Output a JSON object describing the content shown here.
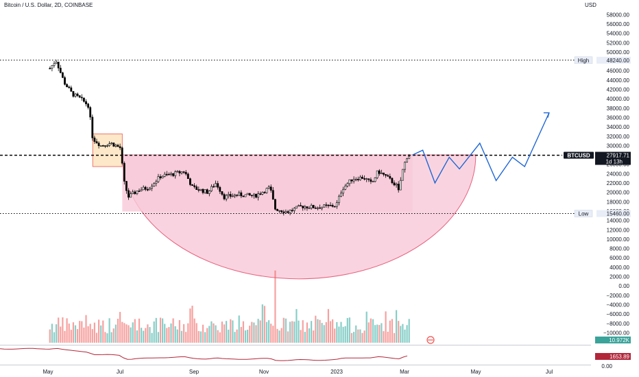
{
  "header": {
    "title": "Bitcoin / U.S. Dollar, 2D, COINBASE"
  },
  "price_axis": {
    "currency": "USD",
    "ticks": [
      "58000.00",
      "56000.00",
      "54000.00",
      "52000.00",
      "50000.00",
      "46000.00",
      "44000.00",
      "42000.00",
      "40000.00",
      "38000.00",
      "36000.00",
      "34000.00",
      "32000.00",
      "30000.00",
      "26000.00",
      "24000.00",
      "22000.00",
      "20000.00",
      "18000.00",
      "16000.00",
      "14000.00",
      "12000.00",
      "10000.00",
      "8000.00",
      "6000.00",
      "4000.00",
      "2000.00",
      "0.00",
      "−2000.00",
      "−4000.00",
      "−6000.00",
      "−8000.00",
      "−10000.00"
    ],
    "high": {
      "label": "High",
      "value": "48240.00"
    },
    "low": {
      "label": "Low",
      "value": "15460.00"
    },
    "current": {
      "symbol": "BTCUSD",
      "value": "27917.71",
      "countdown": "1d 13h"
    },
    "volume_badge": "10.972K",
    "indicator_badge": "1653.89",
    "indicator_zero": "0.00"
  },
  "time_axis": {
    "labels": [
      "May",
      "Jul",
      "Sep",
      "Nov",
      "2023",
      "Mar",
      "May",
      "Jul"
    ]
  },
  "colors": {
    "up": "#26a69a",
    "down": "#ef5350",
    "candle": "#000000",
    "pink_zone": "#f8c9d8",
    "pink_line": "#e8607f",
    "forecast": "#1e66d6",
    "orange_box": "#fde4bf"
  },
  "chart_data": {
    "type": "candlestick",
    "title": "Bitcoin / U.S. Dollar, 2D, COINBASE",
    "y_unit": "USD",
    "ylim": [
      -10000,
      60000
    ],
    "high": 48240,
    "low": 15460,
    "last_price": 27917.71,
    "x_labels": [
      "May",
      "Jul",
      "Sep",
      "Nov",
      "2023",
      "Mar",
      "May",
      "Jul"
    ],
    "price_path": [
      {
        "date": "2022-04-02",
        "close": 46500
      },
      {
        "date": "2022-04-08",
        "close": 48240
      },
      {
        "date": "2022-04-16",
        "close": 43500
      },
      {
        "date": "2022-04-24",
        "close": 41000
      },
      {
        "date": "2022-05-02",
        "close": 40000
      },
      {
        "date": "2022-05-10",
        "close": 38500
      },
      {
        "date": "2022-05-14",
        "close": 31500
      },
      {
        "date": "2022-05-22",
        "close": 30000
      },
      {
        "date": "2022-06-01",
        "close": 30500
      },
      {
        "date": "2022-06-10",
        "close": 29500
      },
      {
        "date": "2022-06-14",
        "close": 22000
      },
      {
        "date": "2022-06-18",
        "close": 19000
      },
      {
        "date": "2022-06-28",
        "close": 20500
      },
      {
        "date": "2022-07-08",
        "close": 21000
      },
      {
        "date": "2022-07-20",
        "close": 23500
      },
      {
        "date": "2022-07-30",
        "close": 23800
      },
      {
        "date": "2022-08-12",
        "close": 24500
      },
      {
        "date": "2022-08-20",
        "close": 21000
      },
      {
        "date": "2022-09-04",
        "close": 20000
      },
      {
        "date": "2022-09-12",
        "close": 22000
      },
      {
        "date": "2022-09-20",
        "close": 19000
      },
      {
        "date": "2022-10-04",
        "close": 19500
      },
      {
        "date": "2022-10-20",
        "close": 19200
      },
      {
        "date": "2022-11-04",
        "close": 21000
      },
      {
        "date": "2022-11-09",
        "close": 16500
      },
      {
        "date": "2022-11-21",
        "close": 15800
      },
      {
        "date": "2022-12-05",
        "close": 17000
      },
      {
        "date": "2022-12-20",
        "close": 16800
      },
      {
        "date": "2023-01-08",
        "close": 17200
      },
      {
        "date": "2023-01-14",
        "close": 20800
      },
      {
        "date": "2023-01-24",
        "close": 22900
      },
      {
        "date": "2023-02-04",
        "close": 23200
      },
      {
        "date": "2023-02-12",
        "close": 21800
      },
      {
        "date": "2023-02-18",
        "close": 24500
      },
      {
        "date": "2023-02-26",
        "close": 23400
      },
      {
        "date": "2023-03-08",
        "close": 21500
      },
      {
        "date": "2023-03-10",
        "close": 20000
      },
      {
        "date": "2023-03-14",
        "close": 24500
      },
      {
        "date": "2023-03-18",
        "close": 27500
      },
      {
        "date": "2023-03-22",
        "close": 28000
      }
    ],
    "forecast_path": [
      {
        "date": "2023-03-24",
        "price": 28000
      },
      {
        "date": "2023-04-03",
        "price": 29000
      },
      {
        "date": "2023-04-15",
        "price": 22000
      },
      {
        "date": "2023-04-29",
        "price": 27500
      },
      {
        "date": "2023-05-09",
        "price": 25000
      },
      {
        "date": "2023-05-29",
        "price": 30500
      },
      {
        "date": "2023-06-14",
        "price": 22500
      },
      {
        "date": "2023-06-30",
        "price": 27500
      },
      {
        "date": "2023-07-12",
        "price": 25500
      },
      {
        "date": "2023-08-05",
        "price": 37000
      }
    ],
    "horizontal_lines": [
      {
        "label": "High",
        "price": 48240
      },
      {
        "label": "BTCUSD",
        "price": 27917.71
      },
      {
        "label": "Low",
        "price": 15460
      }
    ],
    "consolidation_box": {
      "start": "2022-05-14",
      "end": "2022-06-12",
      "top": 32500,
      "bottom": 25500
    },
    "cup_pattern": {
      "start": "2022-06-12",
      "end": "2023-05-25",
      "rim": 28000,
      "bottom": 1500
    },
    "volume_spike": {
      "date": "2022-11-09",
      "value": 6000
    }
  }
}
